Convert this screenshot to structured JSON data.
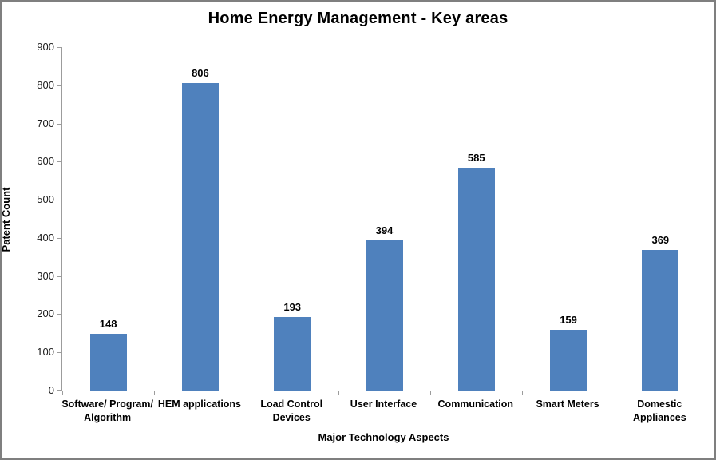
{
  "chart_data": {
    "type": "bar",
    "title": "Home Energy Management - Key areas",
    "xlabel": "Major Technology Aspects",
    "ylabel": "Patent Count",
    "categories": [
      "Software/ Program/ Algorithm",
      "HEM applications",
      "Load Control Devices",
      "User Interface",
      "Communication",
      "Smart Meters",
      "Domestic Appliances"
    ],
    "categories_wrapped": [
      [
        "Software/ Program/",
        "Algorithm"
      ],
      [
        "HEM applications"
      ],
      [
        "Load Control",
        "Devices"
      ],
      [
        "User Interface"
      ],
      [
        "Communication"
      ],
      [
        "Smart Meters"
      ],
      [
        "Domestic",
        "Appliances"
      ]
    ],
    "values": [
      148,
      806,
      193,
      394,
      585,
      159,
      369
    ],
    "ylim": [
      0,
      900
    ],
    "ytick_step": 100,
    "grid": false,
    "legend": false,
    "bar_color": "#4F81BD",
    "axis_color": "#9C9C9C",
    "text_color": "#000000"
  }
}
